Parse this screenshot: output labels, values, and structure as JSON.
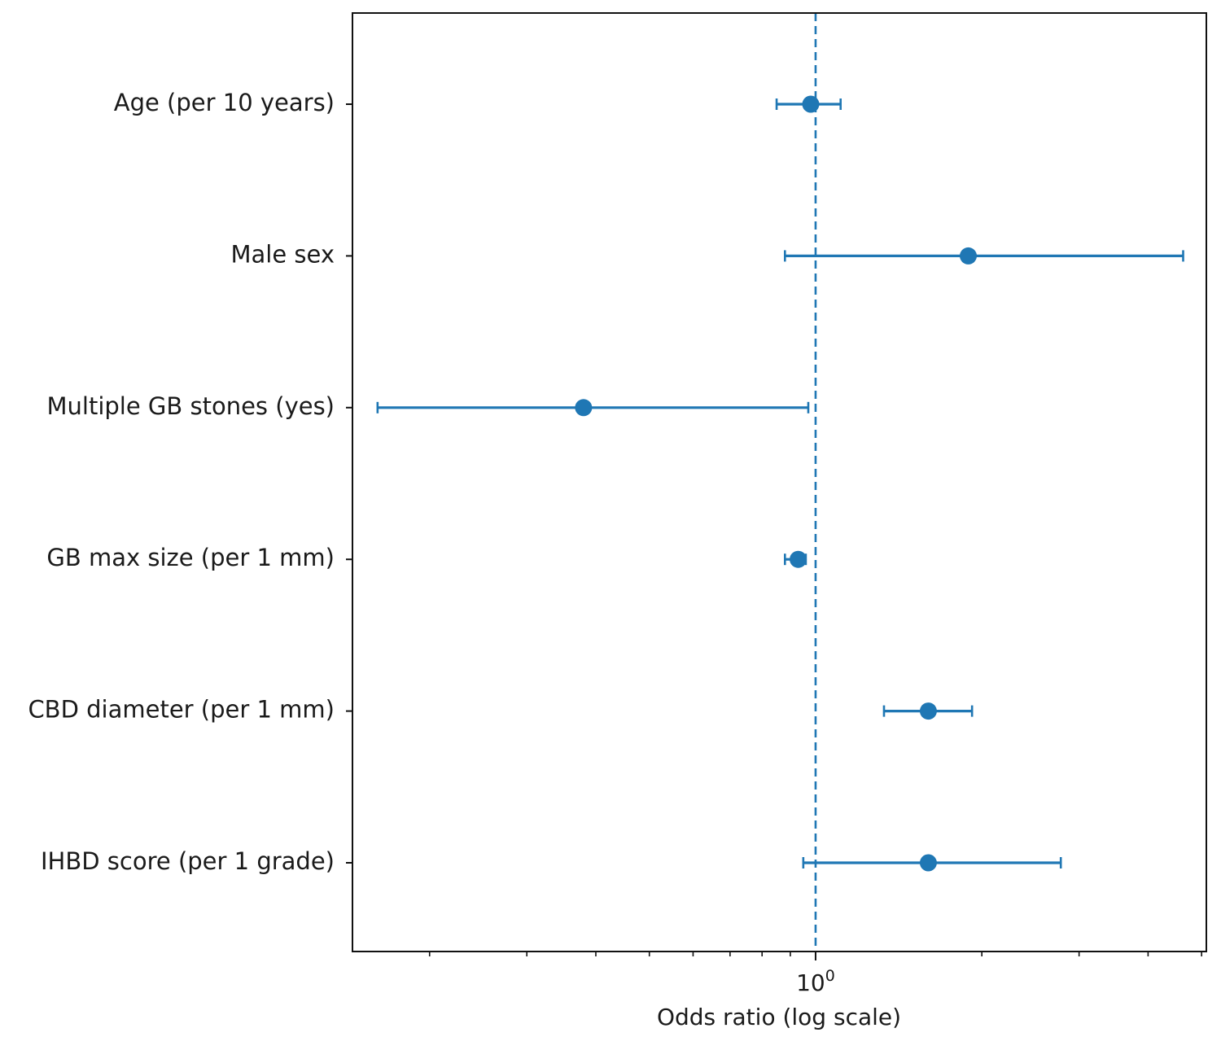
{
  "chart_data": {
    "type": "scatter",
    "xlabel": "Odds ratio (log scale)",
    "xscale": "log",
    "xlim": [
      0.145,
      5.1
    ],
    "xticks_major": [
      {
        "value": 1,
        "base": "10",
        "exp": "0"
      }
    ],
    "xticks_minor": [
      0.2,
      0.3,
      0.4,
      0.5,
      0.6,
      0.7,
      0.8,
      0.9,
      2,
      3,
      4,
      5
    ],
    "reference_line": {
      "x": 1,
      "style": "dashed"
    },
    "grid": false,
    "legend": false,
    "color": "#1f77b4",
    "categories": [
      "Age (per 10 years)",
      "Male sex",
      "Multiple GB stones (yes)",
      "GB max size (per 1 mm)",
      "CBD diameter (per 1 mm)",
      "IHBD score (per 1 grade)"
    ],
    "points": [
      {
        "label": "Age (per 10 years)",
        "or": 0.98,
        "ci_low": 0.85,
        "ci_high": 1.11
      },
      {
        "label": "Male sex",
        "or": 1.89,
        "ci_low": 0.88,
        "ci_high": 4.63
      },
      {
        "label": "Multiple GB stones (yes)",
        "or": 0.38,
        "ci_low": 0.161,
        "ci_high": 0.97
      },
      {
        "label": "GB max size (per 1 mm)",
        "or": 0.93,
        "ci_low": 0.88,
        "ci_high": 0.96
      },
      {
        "label": "CBD diameter (per 1 mm)",
        "or": 1.6,
        "ci_low": 1.33,
        "ci_high": 1.92
      },
      {
        "label": "IHBD score (per 1 grade)",
        "or": 1.6,
        "ci_low": 0.95,
        "ci_high": 2.78
      }
    ]
  }
}
